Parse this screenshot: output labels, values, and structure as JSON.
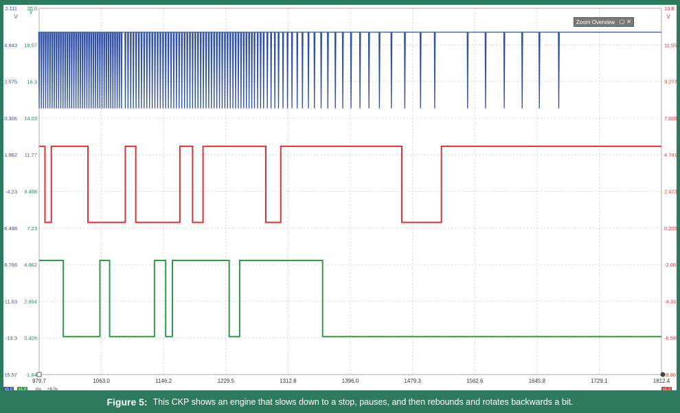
{
  "chart_data": {
    "type": "line",
    "title": "",
    "xlabel": "ms",
    "x_unit_label": "ms",
    "xlim": [
      979.7,
      1812.4
    ],
    "x_ticks": [
      "979.7",
      "1063.0",
      "1146.2",
      "1229.5",
      "1312.8",
      "1396.0",
      "1479.3",
      "1562.6",
      "1645.8",
      "1729.1",
      "1812.4"
    ],
    "left_unit_labels": [
      "V",
      "V"
    ],
    "right_unit_label": "V",
    "left_axis_outer": [
      "2.111",
      "4.843",
      "2.575",
      "0.306",
      "-1.962",
      "-4.23",
      "-6.498",
      "-8.766",
      "-11.03",
      "-13.3",
      "-15.57"
    ],
    "left_axis_inner": [
      "20.0",
      "18.57",
      "16.3",
      "14.03",
      "11.77",
      "9.498",
      "7.23",
      "4.962",
      "2.694",
      "0.426",
      "-1.84"
    ],
    "right_axis": [
      "13.8",
      "11.55",
      "9.277",
      "7.009",
      "4.741",
      "2.473",
      "0.205",
      "-2.063",
      "-4.331",
      "-6.599",
      "-8.867"
    ],
    "y_levels": 11,
    "series": [
      {
        "color": "#2e4fa8",
        "high": 18.57,
        "low": 14.03,
        "kind": "pulse-train",
        "dense_from": 979.7,
        "dense_to": 1090.0,
        "dense_step": 2.9,
        "medium_from": 1095.0,
        "medium_to": 1270.0,
        "medium_step": 3.6,
        "sparse_times": [
          1272,
          1276,
          1280,
          1285,
          1290,
          1295,
          1300,
          1306,
          1312,
          1318,
          1325,
          1332,
          1340,
          1348,
          1357,
          1366,
          1376,
          1386,
          1397,
          1409,
          1421,
          1435,
          1451,
          1469,
          1490,
          1509
        ],
        "tail_times": [
          1553,
          1577,
          1602,
          1626,
          1649,
          1675
        ]
      },
      {
        "color": "#e03030",
        "high": 11.77,
        "low": 7.23,
        "kind": "square",
        "transitions": [
          [
            979.7,
            "high"
          ],
          [
            987.5,
            "low"
          ],
          [
            996.0,
            "high"
          ],
          [
            1045.0,
            "low"
          ],
          [
            1095.0,
            "high"
          ],
          [
            1109.0,
            "low"
          ],
          [
            1168.0,
            "high"
          ],
          [
            1185.0,
            "low"
          ],
          [
            1199.0,
            "high"
          ],
          [
            1283.0,
            "low"
          ],
          [
            1303.0,
            "high"
          ],
          [
            1465.0,
            "low"
          ],
          [
            1518.0,
            "high"
          ],
          [
            1812.4,
            "high"
          ]
        ]
      },
      {
        "color": "#2f9a47",
        "high": 4.962,
        "low": 0.426,
        "kind": "square",
        "transitions": [
          [
            979.7,
            "high"
          ],
          [
            1012.0,
            "low"
          ],
          [
            1061.0,
            "high"
          ],
          [
            1074.0,
            "low"
          ],
          [
            1134.0,
            "high"
          ],
          [
            1149.0,
            "low"
          ],
          [
            1158.0,
            "high"
          ],
          [
            1234.0,
            "low"
          ],
          [
            1248.0,
            "high"
          ],
          [
            1359.0,
            "low"
          ],
          [
            1812.4,
            "low"
          ]
        ]
      }
    ],
    "grid": true,
    "legend": "none"
  },
  "overlay": {
    "zoom_overview_label": "Zoom Overview",
    "zoom_icons": [
      "pin-icon",
      "close-icon"
    ]
  },
  "status_chips": [
    {
      "text": "x1.0",
      "color": "#2e4fa8"
    },
    {
      "text": "x1.0",
      "color": "#2f9a47"
    },
    {
      "text": "ms",
      "color": "#555555"
    },
    {
      "text": "+8.0s",
      "color": "#555555"
    },
    {
      "text": "x1.0",
      "color": "#e03030"
    }
  ],
  "caption": {
    "label": "Figure 5:",
    "text": "This CKP shows an engine that slows down to a stop, pauses, and then rebounds and rotates backwards a bit."
  }
}
